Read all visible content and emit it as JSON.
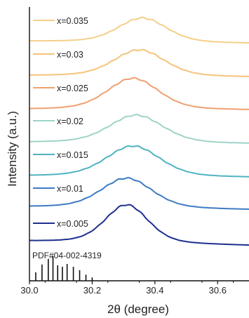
{
  "chart_data": {
    "type": "line",
    "xlabel": "2θ (degree)",
    "ylabel": "Intensity (a.u.)",
    "xlim": [
      30.0,
      30.7
    ],
    "x_ticks": [
      30.0,
      30.2,
      30.4,
      30.6
    ],
    "x_tick_labels": [
      "30.0",
      "30.2",
      "30.4",
      "30.6"
    ],
    "y_ticks": false,
    "grid": false,
    "legend": "inline, top-left of each curve",
    "reference": {
      "label": "PDF#04-002-4319",
      "color": "#111111",
      "sticks": [
        {
          "x": 30.02,
          "h": 0.3
        },
        {
          "x": 30.04,
          "h": 0.58
        },
        {
          "x": 30.06,
          "h": 0.78
        },
        {
          "x": 30.075,
          "h": 0.88
        },
        {
          "x": 30.09,
          "h": 0.55
        },
        {
          "x": 30.105,
          "h": 0.5
        },
        {
          "x": 30.12,
          "h": 0.6
        },
        {
          "x": 30.14,
          "h": 0.5
        },
        {
          "x": 30.16,
          "h": 0.38
        },
        {
          "x": 30.18,
          "h": 0.22
        },
        {
          "x": 30.2,
          "h": 0.12
        }
      ]
    },
    "series": [
      {
        "name": "x=0.005",
        "color": "#1f2f8f",
        "peak": 30.31,
        "fwhm": 0.16,
        "amp": 55,
        "tilt": 6
      },
      {
        "name": "x=0.01",
        "color": "#3d7bc4",
        "peak": 30.31,
        "fwhm": 0.19,
        "amp": 43,
        "tilt": 4
      },
      {
        "name": "x=0.015",
        "color": "#4fb3c0",
        "peak": 30.33,
        "fwhm": 0.2,
        "amp": 44,
        "tilt": 2
      },
      {
        "name": "x=0.02",
        "color": "#9ed3c7",
        "peak": 30.34,
        "fwhm": 0.2,
        "amp": 40,
        "tilt": 2
      },
      {
        "name": "x=0.025",
        "color": "#f0a070",
        "peak": 30.33,
        "fwhm": 0.19,
        "amp": 45,
        "tilt": 1
      },
      {
        "name": "x=0.03",
        "color": "#f5c37a",
        "peak": 30.35,
        "fwhm": 0.19,
        "amp": 38,
        "tilt": 2
      },
      {
        "name": "x=0.035",
        "color": "#f3cf8a",
        "peak": 30.36,
        "fwhm": 0.18,
        "amp": 35,
        "tilt": 3
      }
    ]
  }
}
